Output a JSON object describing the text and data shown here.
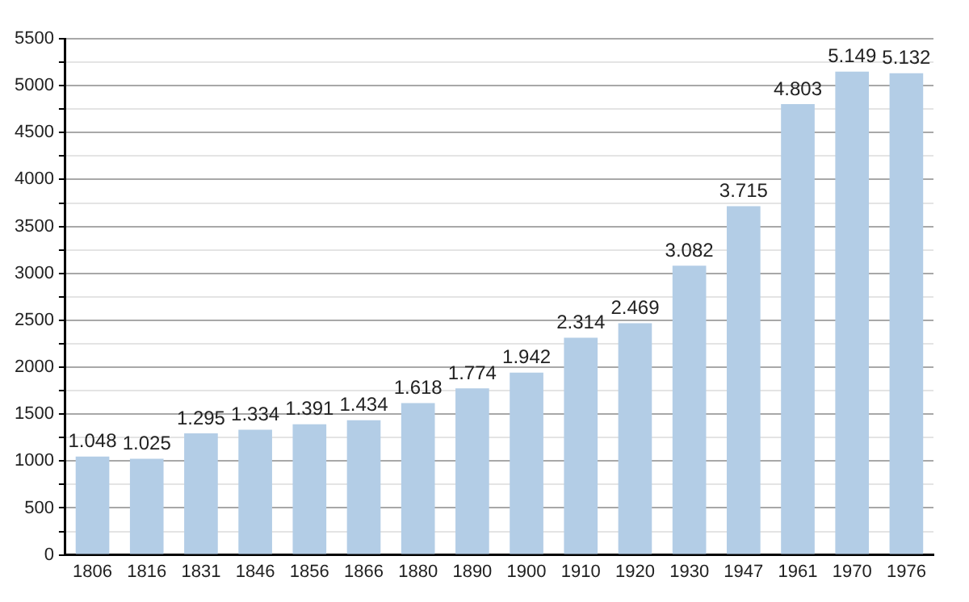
{
  "chart_data": {
    "type": "bar",
    "categories": [
      "1806",
      "1816",
      "1831",
      "1846",
      "1856",
      "1866",
      "1880",
      "1890",
      "1900",
      "1910",
      "1920",
      "1930",
      "1947",
      "1961",
      "1970",
      "1976"
    ],
    "values": [
      1048,
      1025,
      1295,
      1334,
      1391,
      1434,
      1618,
      1774,
      1942,
      2314,
      2469,
      3082,
      3715,
      4803,
      5149,
      5132
    ],
    "value_labels": [
      "1.048",
      "1.025",
      "1.295",
      "1.334",
      "1.391",
      "1.434",
      "1.618",
      "1.774",
      "1.942",
      "2.314",
      "2.469",
      "3.082",
      "3.715",
      "4.803",
      "5.149",
      "5.132"
    ],
    "color": "#b3cde6",
    "ylim": [
      0,
      5500
    ],
    "yticks": [
      0,
      {
        "value": 250,
        "label": null
      },
      500,
      {
        "value": 750,
        "label": null
      },
      1000,
      {
        "value": 1250,
        "label": null
      },
      1500,
      {
        "value": 1750,
        "label": null
      },
      2000,
      {
        "value": 2250,
        "label": null
      },
      2500,
      {
        "value": 2750,
        "label": null
      },
      3000,
      {
        "value": 3250,
        "label": null
      },
      3500,
      {
        "value": 3750,
        "label": null
      },
      4000,
      {
        "value": 4250,
        "label": null
      },
      4500,
      {
        "value": 4750,
        "label": null
      },
      5000,
      {
        "value": 5250,
        "label": null
      },
      5500
    ],
    "grid": "y",
    "legend": false
  }
}
